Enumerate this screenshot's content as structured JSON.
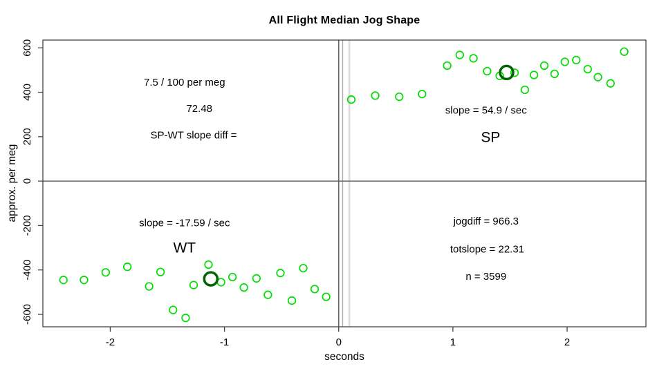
{
  "chart_data": {
    "type": "scatter",
    "title": "All Flight Median Jog Shape",
    "xlabel": "seconds",
    "ylabel": "approx. per meg",
    "x_ticks": [
      -2,
      -1,
      0,
      1,
      2
    ],
    "y_ticks": [
      -600,
      -400,
      -200,
      0,
      200,
      400,
      600
    ],
    "xlim": [
      -2.59,
      2.69
    ],
    "ylim": [
      -656,
      635
    ],
    "grid": false,
    "point_color": "#00dd00",
    "highlight_color": "#006400",
    "frame_color": "#444444",
    "series": [
      {
        "name": "WT",
        "points": [
          [
            -2.41,
            -445
          ],
          [
            -2.23,
            -445
          ],
          [
            -2.04,
            -411
          ],
          [
            -1.85,
            -386
          ],
          [
            -1.66,
            -474
          ],
          [
            -1.56,
            -409
          ],
          [
            -1.45,
            -580
          ],
          [
            -1.34,
            -616
          ],
          [
            -1.27,
            -468
          ],
          [
            -1.14,
            -376
          ],
          [
            -1.03,
            -455
          ],
          [
            -0.93,
            -432
          ],
          [
            -0.83,
            -479
          ],
          [
            -0.72,
            -438
          ],
          [
            -0.62,
            -512
          ],
          [
            -0.51,
            -414
          ],
          [
            -0.41,
            -538
          ],
          [
            -0.31,
            -392
          ],
          [
            -0.21,
            -486
          ],
          [
            -0.11,
            -521
          ]
        ],
        "highlight": [
          -1.12,
          -440
        ]
      },
      {
        "name": "SP",
        "points": [
          [
            0.11,
            367
          ],
          [
            0.32,
            385
          ],
          [
            0.53,
            380
          ],
          [
            0.73,
            392
          ],
          [
            0.95,
            520
          ],
          [
            1.06,
            568
          ],
          [
            1.18,
            553
          ],
          [
            1.3,
            495
          ],
          [
            1.41,
            474
          ],
          [
            1.54,
            488
          ],
          [
            1.63,
            411
          ],
          [
            1.71,
            478
          ],
          [
            1.8,
            520
          ],
          [
            1.89,
            483
          ],
          [
            1.98,
            537
          ],
          [
            2.08,
            545
          ],
          [
            2.18,
            504
          ],
          [
            2.27,
            468
          ],
          [
            2.38,
            440
          ],
          [
            2.5,
            583
          ]
        ],
        "highlight": [
          1.47,
          489
        ]
      }
    ],
    "reference_lines": {
      "horizontal": [
        {
          "y": 0,
          "color": "#666666",
          "width": 1.5
        }
      ],
      "vertical": [
        {
          "x": 0.0,
          "color": "#666666",
          "width": 1.6
        },
        {
          "x": 0.035,
          "color": "#aaaaaa",
          "width": 1.3
        },
        {
          "x": 0.093,
          "color": "#dddddd",
          "width": 2.8
        }
      ]
    },
    "annotations": [
      {
        "text": "7.5 / 100 per meg",
        "x": -1.35,
        "y": 445,
        "size": 15
      },
      {
        "text": "72.48",
        "x": -1.22,
        "y": 327,
        "size": 15
      },
      {
        "text": "SP-WT slope diff =",
        "x": -1.27,
        "y": 208,
        "size": 15
      },
      {
        "text": "slope = 54.9 / sec",
        "x": 1.29,
        "y": 320,
        "size": 15
      },
      {
        "text": "SP",
        "x": 1.33,
        "y": 199,
        "size": 21
      },
      {
        "text": "slope = -17.59 / sec",
        "x": -1.35,
        "y": -187,
        "size": 15
      },
      {
        "text": "WT",
        "x": -1.35,
        "y": -299,
        "size": 21
      },
      {
        "text": "jogdiff = 966.3",
        "x": 1.29,
        "y": -180,
        "size": 15
      },
      {
        "text": "totslope = 22.31",
        "x": 1.3,
        "y": -305,
        "size": 15
      },
      {
        "text": "n = 3599",
        "x": 1.29,
        "y": -429,
        "size": 15
      }
    ]
  }
}
